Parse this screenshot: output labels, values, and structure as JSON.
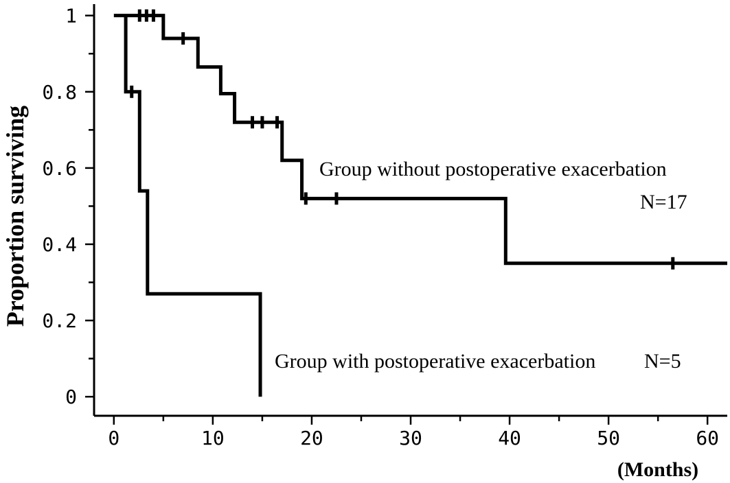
{
  "chart_data": {
    "type": "line",
    "step": true,
    "xlabel": "(Months)",
    "ylabel": "Proportion surviving",
    "xlim": [
      -2,
      62
    ],
    "ylim": [
      -0.05,
      1.03
    ],
    "xticks": [
      0,
      10,
      20,
      30,
      40,
      50,
      60
    ],
    "yticks": [
      0,
      0.2,
      0.4,
      0.6,
      0.8,
      1
    ],
    "xtick_labels": [
      "0",
      "10",
      "20",
      "30",
      "40",
      "50",
      "60"
    ],
    "ytick_labels": [
      "0",
      "0.2",
      "0.4",
      "0.6",
      "0.8",
      "1"
    ],
    "grid": false,
    "series": [
      {
        "name": "Group without postoperative exacerbation",
        "label": "Group without postoperative exacerbation",
        "n_label": "N=17",
        "color": "#000000",
        "x": [
          0,
          5,
          8.5,
          10.8,
          12.2,
          17,
          19,
          39.6,
          62
        ],
        "y": [
          1.0,
          0.94,
          0.865,
          0.795,
          0.72,
          0.62,
          0.52,
          0.35,
          0.35
        ],
        "censored_x": [
          2.6,
          3.3,
          4.0,
          7.0,
          14.0,
          15.0,
          16.5,
          19.4,
          22.5,
          56.5
        ],
        "censored_y": [
          1.0,
          1.0,
          1.0,
          0.94,
          0.72,
          0.72,
          0.72,
          0.52,
          0.52,
          0.35
        ]
      },
      {
        "name": "Group with postoperative exacerbation",
        "label": "Group with postoperative exacerbation",
        "n_label": "N=5",
        "color": "#000000",
        "x": [
          1.2,
          2.6,
          3.4,
          14.8,
          14.8
        ],
        "y": [
          0.8,
          0.54,
          0.27,
          0.27,
          0.0
        ],
        "start_x": 1.2,
        "start_y": 1.0,
        "censored_x": [
          1.8
        ],
        "censored_y": [
          0.8
        ]
      }
    ],
    "annotations": [
      {
        "text": "Group without postoperative exacerbation",
        "series": 0
      },
      {
        "text": "N=17",
        "series": 0
      },
      {
        "text": "Group with postoperative exacerbation",
        "series": 1
      },
      {
        "text": "N=5",
        "series": 1
      }
    ]
  }
}
